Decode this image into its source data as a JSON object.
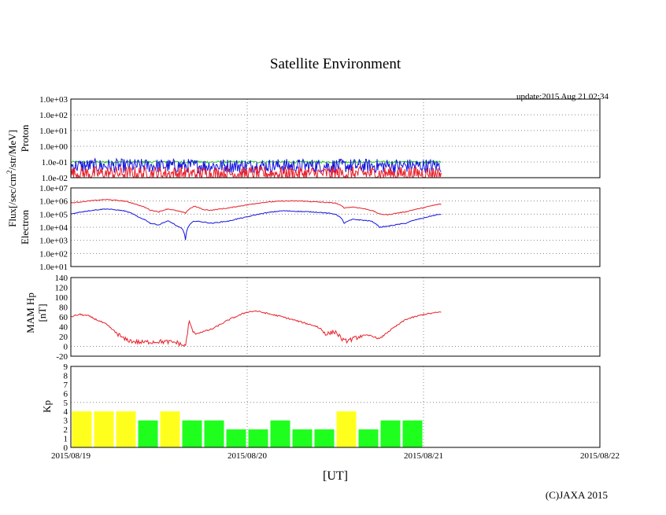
{
  "title": "Satellite Environment",
  "update_text": "update:2015 Aug 21 02:34",
  "copyright": "(C)JAXA 2015",
  "colors": {
    "red": "#e8202a",
    "blue": "#1414e0",
    "green": "#28c828",
    "kp_yellow": "#ffff1e",
    "kp_green": "#1eff1e",
    "grid": "#888888"
  },
  "chart_data": {
    "type": "line",
    "x_axis": {
      "label": "[UT]",
      "range_days": [
        0,
        3
      ],
      "ticks": [
        {
          "day": 0,
          "label": "2015/08/19"
        },
        {
          "day": 1,
          "label": "2015/08/20"
        },
        {
          "day": 2,
          "label": "2015/08/21"
        },
        {
          "day": 3,
          "label": "2015/08/22"
        }
      ]
    },
    "shared_ylabel": "Flux[/sec/cm",
    "shared_ylabel_sup": "2",
    "shared_ylabel_tail": "/str/MeV]",
    "proton": {
      "ylabel": "Proton",
      "ylim_log10": [
        -2,
        3
      ],
      "tick_labels": [
        "1.0e+03",
        "1.0e+02",
        "1.0e+01",
        "1.0e+00",
        "1.0e-01",
        "1.0e-02"
      ],
      "data_end_day": 2.1,
      "series": [
        {
          "name": "green",
          "typical": 0.1
        },
        {
          "name": "blue",
          "typical": 0.07
        },
        {
          "name": "red",
          "typical": 0.015
        }
      ]
    },
    "electron": {
      "ylabel": "Electron",
      "ylim_log10": [
        1,
        7
      ],
      "tick_labels": [
        "1.0e+07",
        "1.0e+06",
        "1.0e+05",
        "1.0e+04",
        "1.0e+03",
        "1.0e+02",
        "1.0e+01"
      ],
      "series": [
        {
          "name": "red",
          "x": [
            0,
            0.1,
            0.2,
            0.3,
            0.38,
            0.45,
            0.5,
            0.55,
            0.6,
            0.65,
            0.7,
            0.75,
            0.8,
            0.9,
            1.0,
            1.1,
            1.2,
            1.3,
            1.4,
            1.5,
            1.55,
            1.6,
            1.7,
            1.75,
            1.8,
            1.9,
            2.0,
            2.1
          ],
          "values": [
            700000,
            1000000,
            1300000,
            1000000,
            500000,
            200000,
            150000,
            250000,
            180000,
            120000,
            400000,
            220000,
            200000,
            300000,
            500000,
            800000,
            1000000,
            1000000,
            850000,
            700000,
            300000,
            350000,
            200000,
            100000,
            90000,
            150000,
            300000,
            600000
          ]
        },
        {
          "name": "blue",
          "x": [
            0,
            0.1,
            0.2,
            0.3,
            0.38,
            0.45,
            0.5,
            0.55,
            0.6,
            0.63,
            0.65,
            0.7,
            0.8,
            0.9,
            1.0,
            1.1,
            1.2,
            1.3,
            1.4,
            1.5,
            1.55,
            1.6,
            1.7,
            1.75,
            1.8,
            1.9,
            2.0,
            2.1
          ],
          "values": [
            100000,
            180000,
            250000,
            180000,
            60000,
            20000,
            15000,
            30000,
            12000,
            8000,
            1000,
            30000,
            20000,
            30000,
            60000,
            120000,
            180000,
            160000,
            140000,
            100000,
            20000,
            40000,
            30000,
            10000,
            12000,
            20000,
            50000,
            100000
          ]
        }
      ]
    },
    "mam_hp": {
      "ylabel": "MAM Hp",
      "ylabel2": "[nT]",
      "ylim": [
        -20,
        140
      ],
      "tick_values": [
        140,
        120,
        100,
        80,
        60,
        40,
        20,
        0,
        -20
      ],
      "series": [
        {
          "name": "red",
          "x": [
            0,
            0.05,
            0.1,
            0.2,
            0.3,
            0.35,
            0.4,
            0.5,
            0.6,
            0.65,
            0.67,
            0.7,
            0.8,
            0.9,
            1.0,
            1.05,
            1.1,
            1.2,
            1.3,
            1.4,
            1.45,
            1.5,
            1.55,
            1.6,
            1.65,
            1.7,
            1.75,
            1.8,
            1.9,
            2.0,
            2.1
          ],
          "values": [
            60,
            65,
            62,
            45,
            15,
            10,
            8,
            10,
            8,
            0,
            50,
            25,
            35,
            55,
            70,
            72,
            68,
            60,
            50,
            40,
            25,
            30,
            10,
            15,
            22,
            22,
            15,
            30,
            55,
            65,
            70
          ]
        }
      ]
    },
    "kp": {
      "ylabel": "Kp",
      "ylim": [
        0,
        9
      ],
      "tick_values": [
        9,
        8,
        7,
        6,
        5,
        4,
        3,
        2,
        1,
        0
      ],
      "bars": [
        4,
        4,
        4,
        3,
        4,
        3,
        3,
        2,
        2,
        3,
        2,
        2,
        4,
        2,
        3,
        3
      ],
      "bar_width_days": 0.125,
      "threshold_yellow": 4
    }
  }
}
